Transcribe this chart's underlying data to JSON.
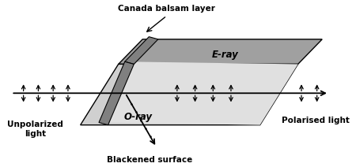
{
  "bg_color": "#ffffff",
  "prism_top_color": "#a0a0a0",
  "prism_face_light_color": "#d0d0d0",
  "prism_face_lighter_color": "#e0e0e0",
  "canada_balsam_color": "#808080",
  "title": "Canada balsam layer",
  "label_unpolarized": "Unpolarized\nlight",
  "label_polarised": "Polarised light",
  "label_eray": "E-ray",
  "label_oray": "O-ray",
  "label_blackened": "Blackened surface",
  "arrow_color": "#000000",
  "figsize": [
    4.5,
    2.12
  ],
  "dpi": 100
}
